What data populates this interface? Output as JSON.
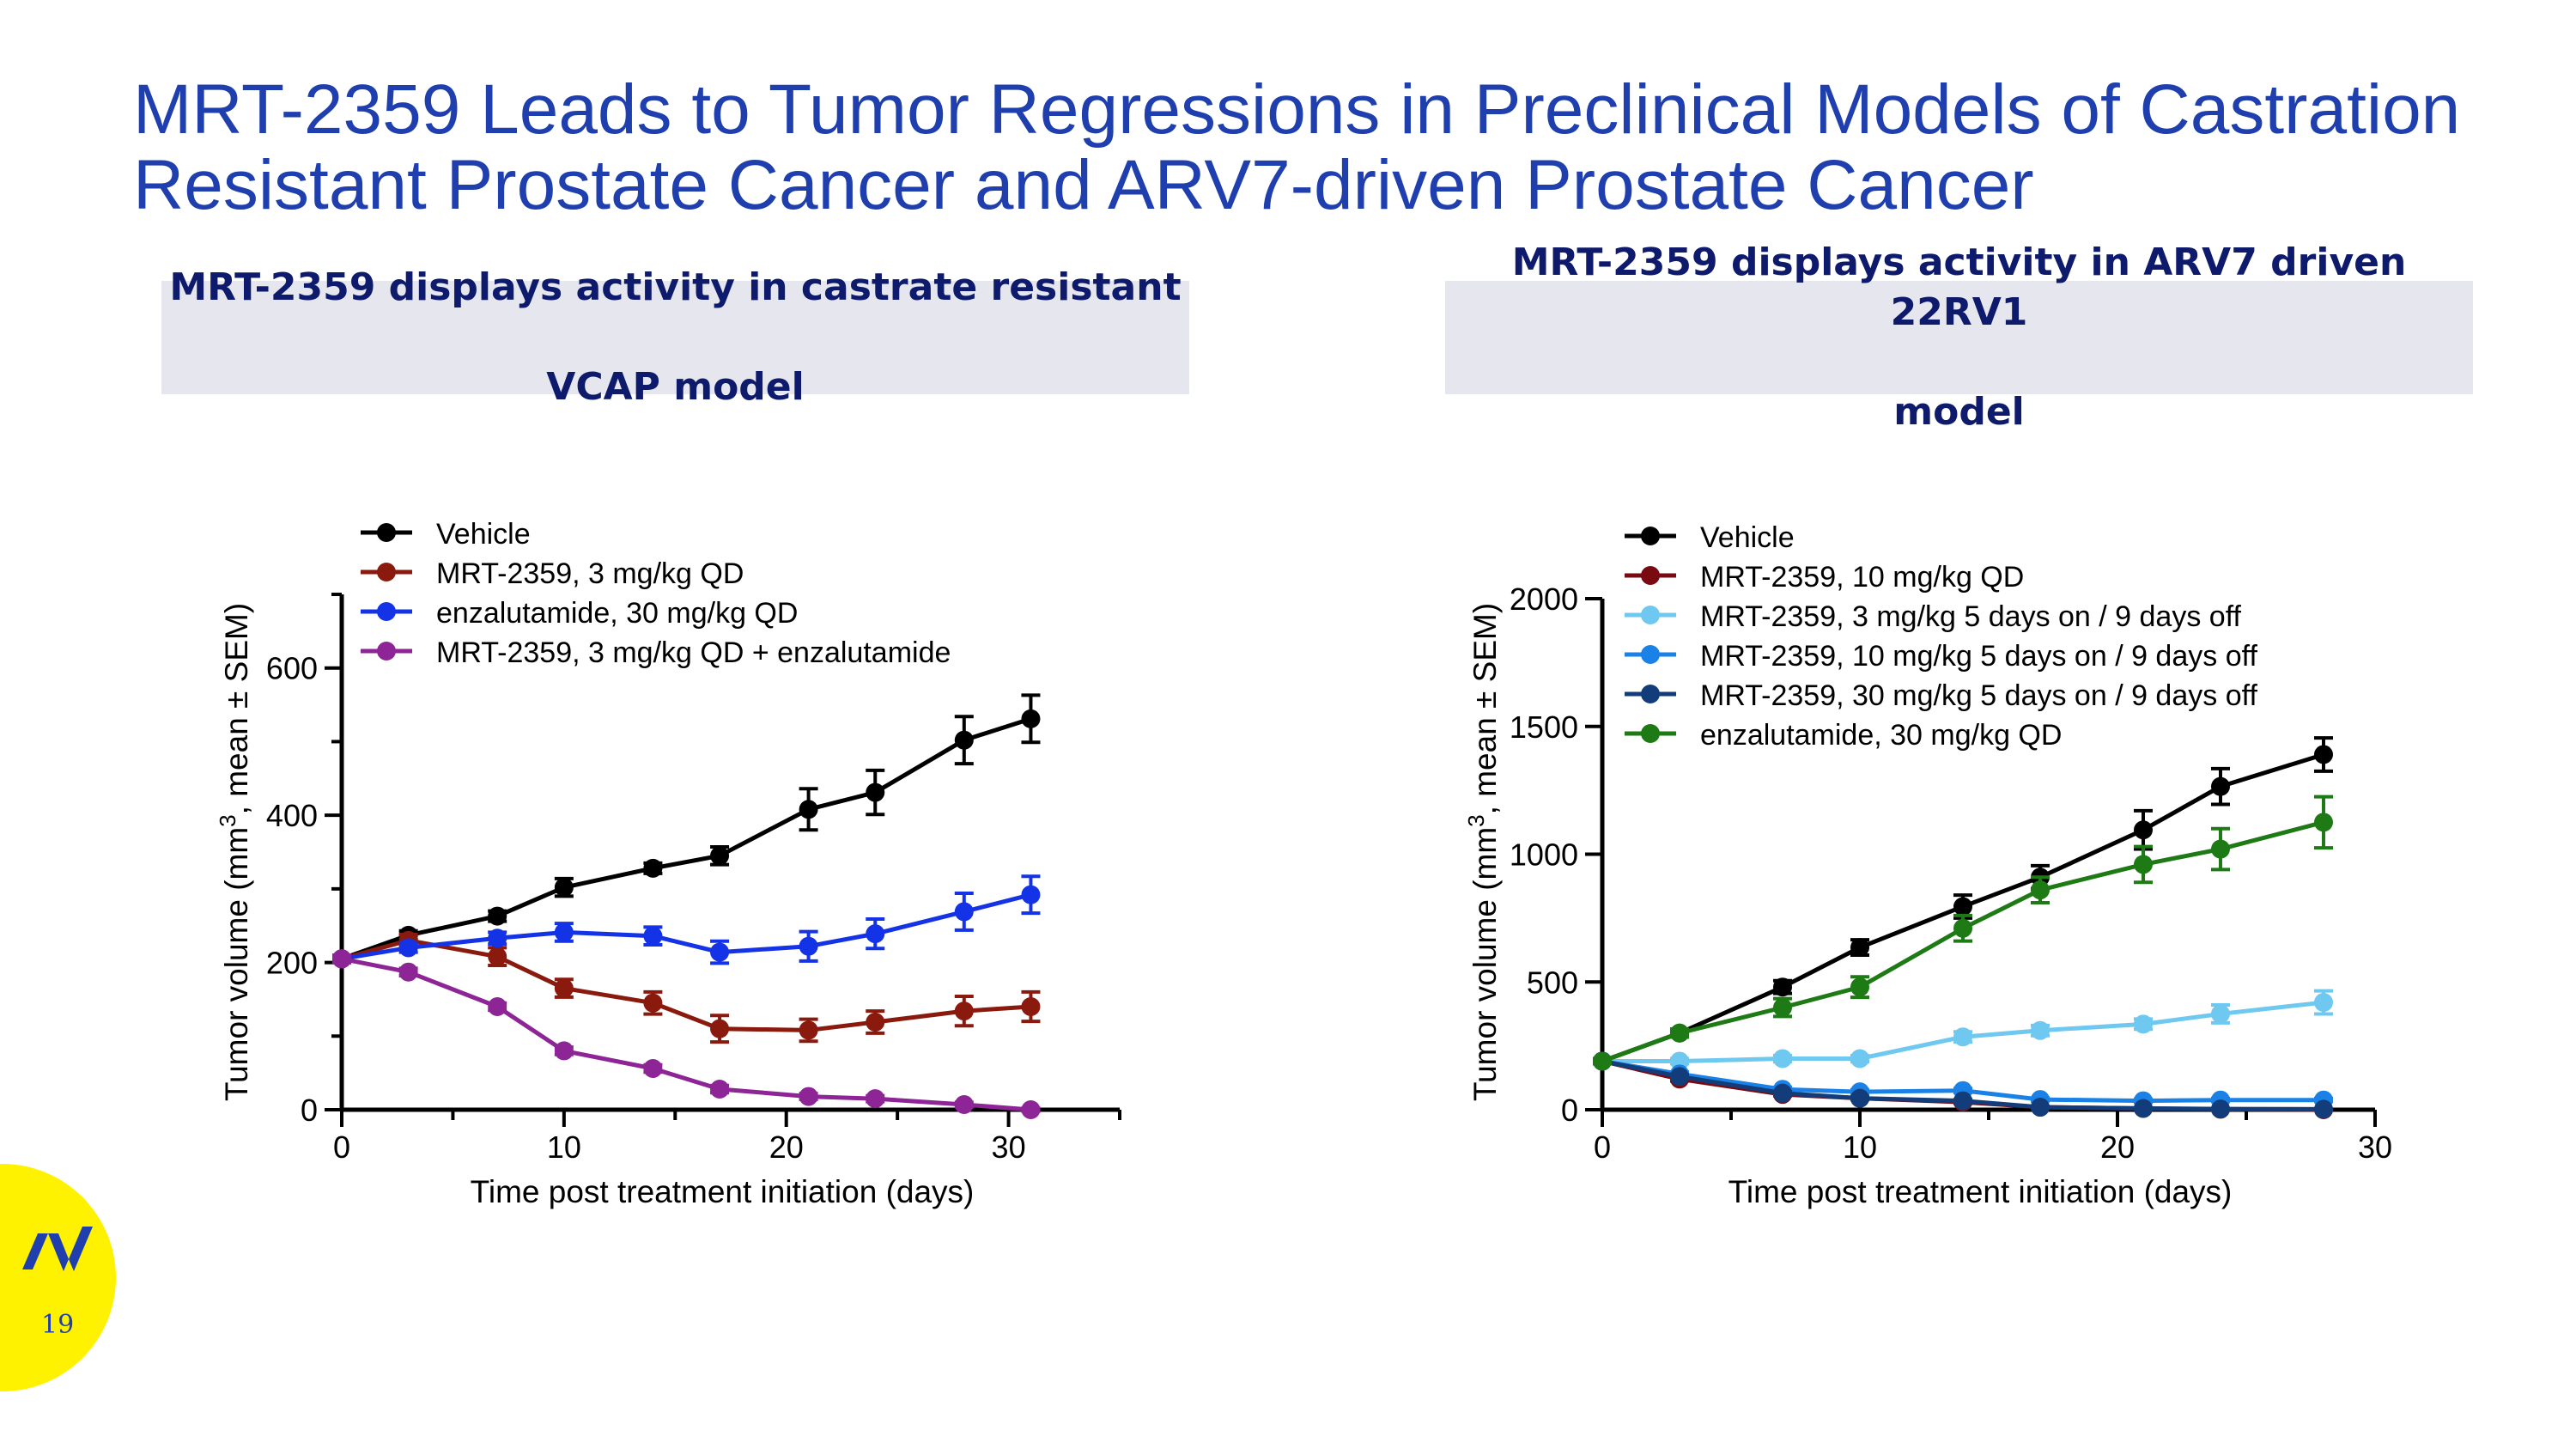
{
  "slide": {
    "title_line1": "MRT-2359 Leads to Tumor Regressions in Preclinical Models of Castration",
    "title_line2": "Resistant Prostate Cancer and ARV7-driven Prostate Cancer",
    "page_number": "19",
    "brand_color": "#fff200",
    "title_color": "#1f3fae"
  },
  "panels": [
    {
      "header_line1": "MRT-2359 displays activity in castrate resistant",
      "header_line2": "VCAP model"
    },
    {
      "header_line1": "MRT-2359 displays activity in ARV7 driven 22RV1",
      "header_line2": "model"
    }
  ],
  "chart_data": [
    {
      "type": "line",
      "title": "MRT-2359 displays activity in castrate resistant VCAP model",
      "xlabel": "Time post treatment initiation (days)",
      "ylabel_main": "Tumor volume (mm",
      "ylabel_sup": "3",
      "ylabel_tail": ", mean ± SEM)",
      "xlim": [
        0,
        35
      ],
      "ylim": [
        0,
        700
      ],
      "xticks": [
        0,
        10,
        20,
        30
      ],
      "yticks": [
        0,
        200,
        400,
        600
      ],
      "xminor": [
        0,
        5,
        10,
        15,
        20,
        25,
        30,
        35
      ],
      "yminor": [
        0,
        100,
        200,
        300,
        400,
        500,
        600,
        700
      ],
      "legend_position": "top-left",
      "x": [
        0,
        3,
        7,
        10,
        14,
        17,
        21,
        24,
        28,
        31
      ],
      "series": [
        {
          "name": "Vehicle",
          "color": "#000000",
          "values": [
            205,
            237,
            263,
            302,
            328,
            345,
            408,
            431,
            502,
            531
          ],
          "errors": [
            5,
            6,
            7,
            12,
            7,
            12,
            28,
            30,
            32,
            32
          ]
        },
        {
          "name": "MRT-2359, 3 mg/kg QD",
          "color": "#8b1a0e",
          "values": [
            205,
            230,
            208,
            165,
            145,
            110,
            108,
            119,
            134,
            140
          ],
          "errors": [
            5,
            8,
            12,
            12,
            15,
            18,
            15,
            15,
            20,
            20
          ]
        },
        {
          "name": "enzalutamide, 30 mg/kg QD",
          "color": "#1533e6",
          "values": [
            205,
            220,
            233,
            241,
            236,
            214,
            222,
            239,
            269,
            292
          ],
          "errors": [
            5,
            6,
            8,
            12,
            12,
            15,
            20,
            20,
            25,
            25
          ]
        },
        {
          "name": "MRT-2359, 3 mg/kg QD + enzalutamide",
          "color": "#8e2596",
          "values": [
            205,
            187,
            140,
            80,
            56,
            28,
            18,
            15,
            7,
            0
          ],
          "errors": [
            5,
            5,
            5,
            5,
            5,
            5,
            4,
            4,
            3,
            2
          ]
        }
      ]
    },
    {
      "type": "line",
      "title": "MRT-2359 displays activity in ARV7 driven 22RV1 model",
      "xlabel": "Time post treatment initiation (days)",
      "ylabel_main": "Tumor volume (mm",
      "ylabel_sup": "3",
      "ylabel_tail": ", mean ± SEM)",
      "xlim": [
        0,
        30
      ],
      "ylim": [
        0,
        2000
      ],
      "xticks": [
        0,
        10,
        20,
        30
      ],
      "yticks": [
        0,
        500,
        1000,
        1500,
        2000
      ],
      "xminor": [
        0,
        5,
        10,
        15,
        20,
        25,
        30
      ],
      "yminor": [
        0,
        500,
        1000,
        1500,
        2000
      ],
      "legend_position": "top-left",
      "x": [
        0,
        3,
        7,
        10,
        14,
        17,
        21,
        24,
        28
      ],
      "series": [
        {
          "name": "Vehicle",
          "color": "#000000",
          "values": [
            190,
            300,
            480,
            635,
            795,
            910,
            1095,
            1265,
            1390
          ],
          "errors": [
            10,
            15,
            25,
            30,
            45,
            45,
            75,
            70,
            65
          ]
        },
        {
          "name": "MRT-2359, 10 mg/kg QD",
          "color": "#7a0a12",
          "values": [
            190,
            120,
            60,
            45,
            30,
            10,
            5,
            2,
            0
          ],
          "errors": [
            8,
            8,
            6,
            5,
            5,
            3,
            2,
            2,
            1
          ]
        },
        {
          "name": "MRT-2359, 3 mg/kg 5 days on / 9 days off",
          "color": "#6fc8f0",
          "values": [
            190,
            190,
            200,
            200,
            285,
            310,
            335,
            375,
            420
          ],
          "errors": [
            8,
            10,
            12,
            12,
            20,
            20,
            20,
            35,
            45
          ]
        },
        {
          "name": "MRT-2359, 10 mg/kg 5 days on / 9 days off",
          "color": "#1a82e6",
          "values": [
            190,
            140,
            80,
            70,
            75,
            40,
            35,
            38,
            38
          ],
          "errors": [
            8,
            8,
            8,
            8,
            8,
            6,
            6,
            6,
            6
          ]
        },
        {
          "name": "MRT-2359, 30 mg/kg 5 days on / 9 days off",
          "color": "#123d7a",
          "values": [
            190,
            130,
            65,
            45,
            35,
            10,
            5,
            3,
            2
          ],
          "errors": [
            8,
            8,
            6,
            5,
            5,
            3,
            2,
            2,
            1
          ]
        },
        {
          "name": "enzalutamide, 30 mg/kg QD",
          "color": "#1e7a14",
          "values": [
            190,
            300,
            400,
            480,
            710,
            860,
            960,
            1020,
            1125
          ],
          "errors": [
            10,
            15,
            35,
            40,
            50,
            50,
            70,
            80,
            100
          ]
        }
      ]
    }
  ]
}
